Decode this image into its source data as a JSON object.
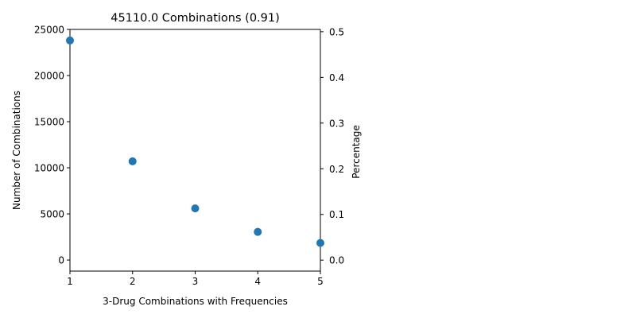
{
  "chart_data": {
    "type": "scatter",
    "title": "45110.0 Combinations (0.91)",
    "xlabel": "3-Drug Combinations with Frequencies",
    "ylabel": "Number of Combinations",
    "ylabel_right": "Percentage",
    "x": [
      1,
      2,
      3,
      4,
      5
    ],
    "y": [
      23800,
      10700,
      5600,
      3050,
      1850
    ],
    "xlim": [
      1,
      5
    ],
    "ylim": [
      -1200,
      25000
    ],
    "ylim_right": [
      -0.024,
      0.505
    ],
    "xticks": [
      1,
      2,
      3,
      4,
      5
    ],
    "yticks": [
      0,
      5000,
      10000,
      15000,
      20000,
      25000
    ],
    "yticks_right": [
      0.0,
      0.1,
      0.2,
      0.3,
      0.4,
      0.5
    ],
    "ytick_labels_right": [
      "0.0",
      "0.1",
      "0.2",
      "0.3",
      "0.4",
      "0.5"
    ],
    "marker_color": "#1f77b4",
    "grid": false,
    "legend": "none"
  }
}
